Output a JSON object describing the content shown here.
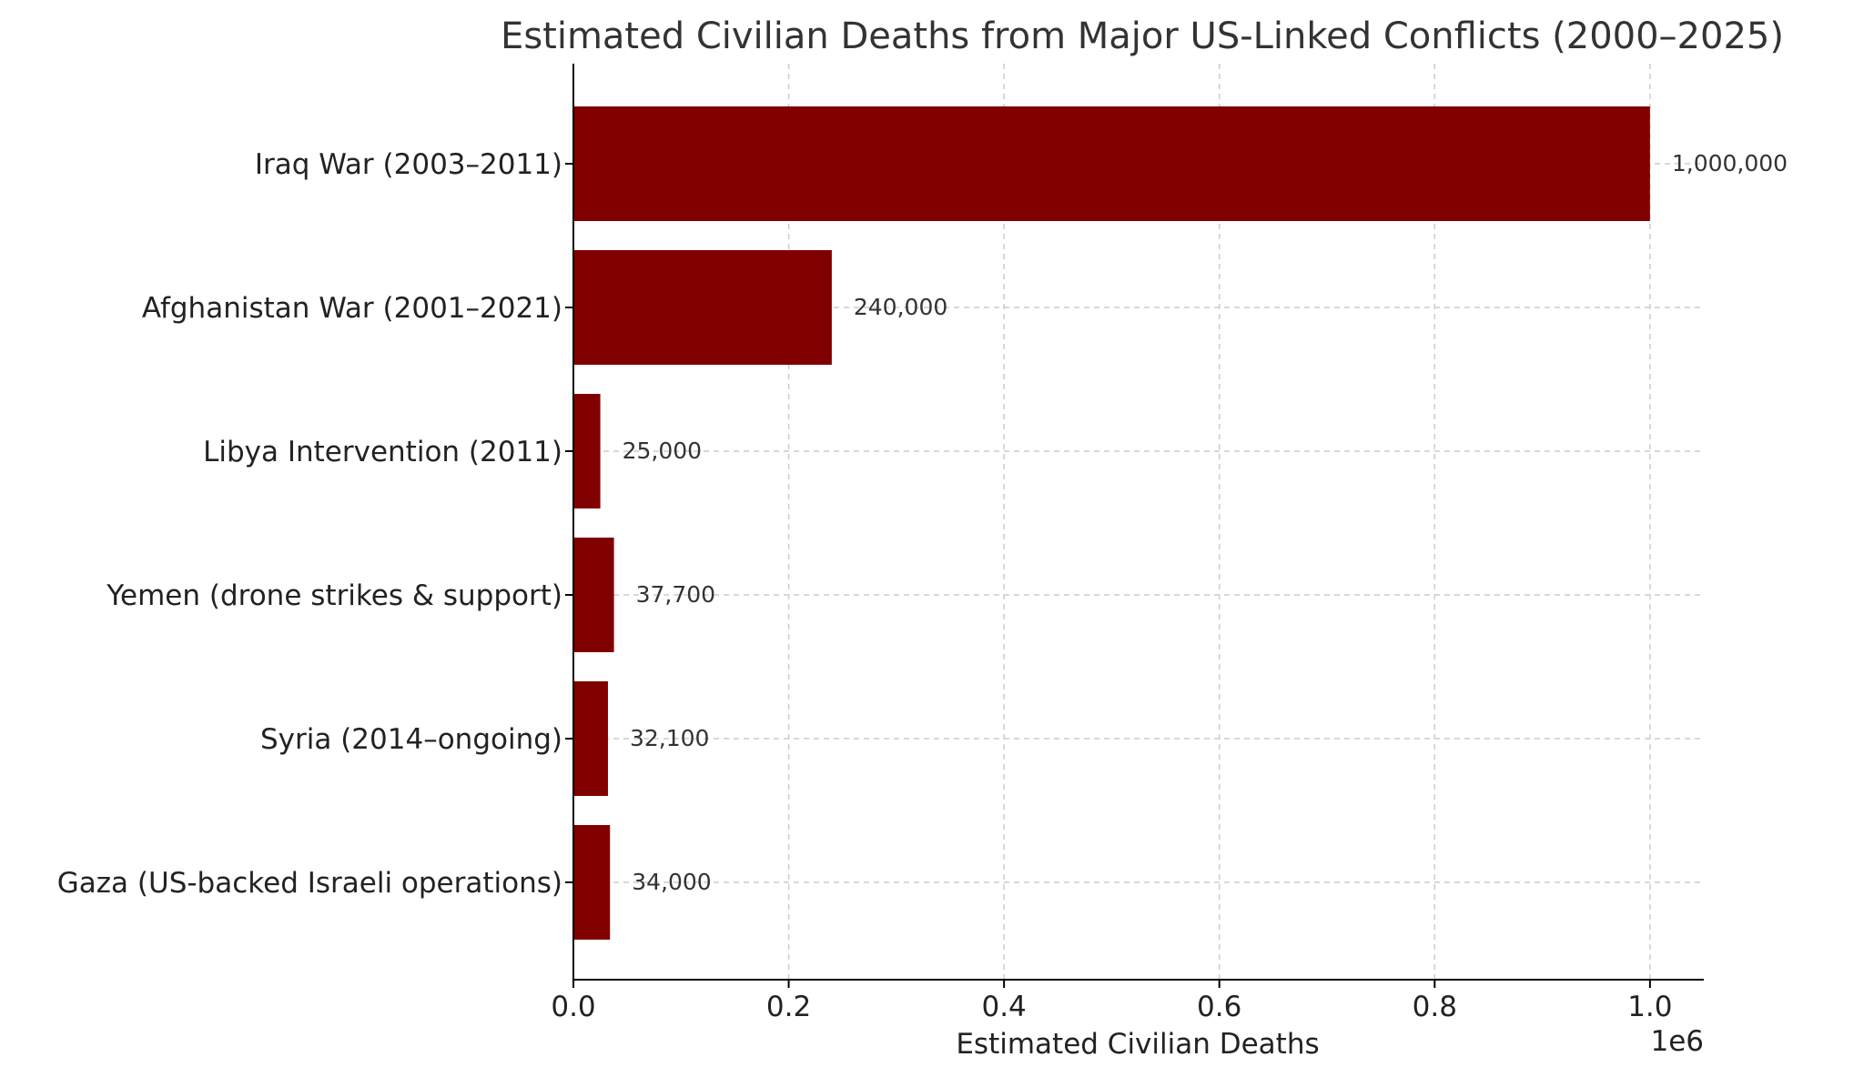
{
  "chart_data": {
    "type": "bar",
    "orientation": "horizontal",
    "title": "Estimated Civilian Deaths from Major US-Linked Conflicts (2000–2025)",
    "xlabel": "Estimated Civilian Deaths",
    "ylabel": "",
    "x_offset_label": "1e6",
    "xlim": [
      0,
      1050000
    ],
    "xticks": [
      0,
      200000,
      400000,
      600000,
      800000,
      1000000
    ],
    "xtick_labels": [
      "0.0",
      "0.2",
      "0.4",
      "0.6",
      "0.8",
      "1.0"
    ],
    "grid": true,
    "bar_color": "#800000",
    "categories": [
      "Iraq War (2003–2011)",
      "Afghanistan War (2001–2021)",
      "Libya Intervention (2011)",
      "Yemen (drone strikes & support)",
      "Syria (2014–ongoing)",
      "Gaza (US-backed Israeli operations)"
    ],
    "values": [
      1000000,
      240000,
      25000,
      37700,
      32100,
      34000
    ],
    "value_labels": [
      "1,000,000",
      "240,000",
      "25,000",
      "37,700",
      "32,100",
      "34,000"
    ]
  }
}
